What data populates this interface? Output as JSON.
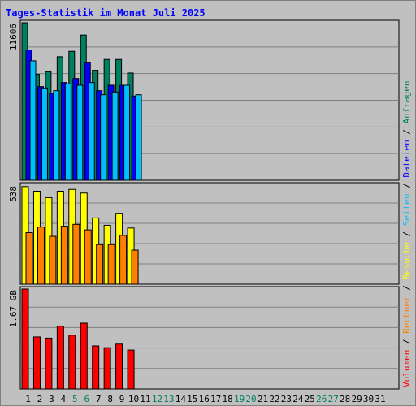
{
  "chart_data": {
    "type": "bar",
    "title": "Tages-Statistik im Monat Juli 2025",
    "categories": [
      "1",
      "2",
      "3",
      "4",
      "5",
      "6",
      "7",
      "8",
      "9",
      "10",
      "11",
      "12",
      "13",
      "14",
      "15",
      "16",
      "17",
      "18",
      "19",
      "20",
      "21",
      "22",
      "23",
      "24",
      "25",
      "26",
      "27",
      "28",
      "29",
      "30",
      "31"
    ],
    "weekend_days": [
      "5",
      "6",
      "12",
      "13",
      "19",
      "20",
      "26",
      "27"
    ],
    "panels": [
      {
        "id": "top",
        "max_label": "11606",
        "ymax": 11606,
        "series": [
          {
            "name": "Anfragen",
            "color": "#008060",
            "values": [
              11606,
              7800,
              8000,
              9100,
              9500,
              10700,
              8100,
              8900,
              8900,
              7900
            ]
          },
          {
            "name": "Dateien",
            "color": "#0000ff",
            "values": [
              9600,
              6900,
              6400,
              7200,
              7500,
              8700,
              6600,
              7000,
              7000,
              6200
            ]
          },
          {
            "name": "Seiten",
            "color": "#00c0ff",
            "values": [
              8800,
              6800,
              6600,
              7100,
              7000,
              7200,
              6300,
              6500,
              7000,
              6300
            ]
          }
        ]
      },
      {
        "id": "mid",
        "max_label": "538",
        "ymax": 538,
        "series": [
          {
            "name": "Besuche",
            "color": "#ffff00",
            "values": [
              530,
              505,
              470,
              505,
              515,
              495,
              360,
              320,
              385,
              305
            ]
          },
          {
            "name": "Rechner",
            "color": "#ff8000",
            "values": [
              280,
              310,
              260,
              315,
              325,
              295,
              215,
              215,
              265,
              185
            ]
          }
        ]
      },
      {
        "id": "bottom",
        "max_label": "1.67 GB",
        "ymax": 1.67,
        "series": [
          {
            "name": "Volumen",
            "color": "#ff0000",
            "values": [
              1.67,
              0.87,
              0.85,
              1.05,
              0.9,
              1.1,
              0.72,
              0.69,
              0.75,
              0.65
            ]
          }
        ]
      }
    ],
    "legend": [
      {
        "label": "Volumen",
        "color": "#ff0000"
      },
      {
        "label": "/",
        "color": "#000000"
      },
      {
        "label": "Rechner",
        "color": "#ff8000"
      },
      {
        "label": "/",
        "color": "#000000"
      },
      {
        "label": "Besuche",
        "color": "#ffff00"
      },
      {
        "label": "/",
        "color": "#000000"
      },
      {
        "label": "Seiten",
        "color": "#00c0ff"
      },
      {
        "label": "/",
        "color": "#000000"
      },
      {
        "label": "Dateien",
        "color": "#0000ff"
      },
      {
        "label": "/",
        "color": "#000000"
      },
      {
        "label": "Anfragen",
        "color": "#008060"
      }
    ],
    "legend_position": "right",
    "grid": true
  }
}
